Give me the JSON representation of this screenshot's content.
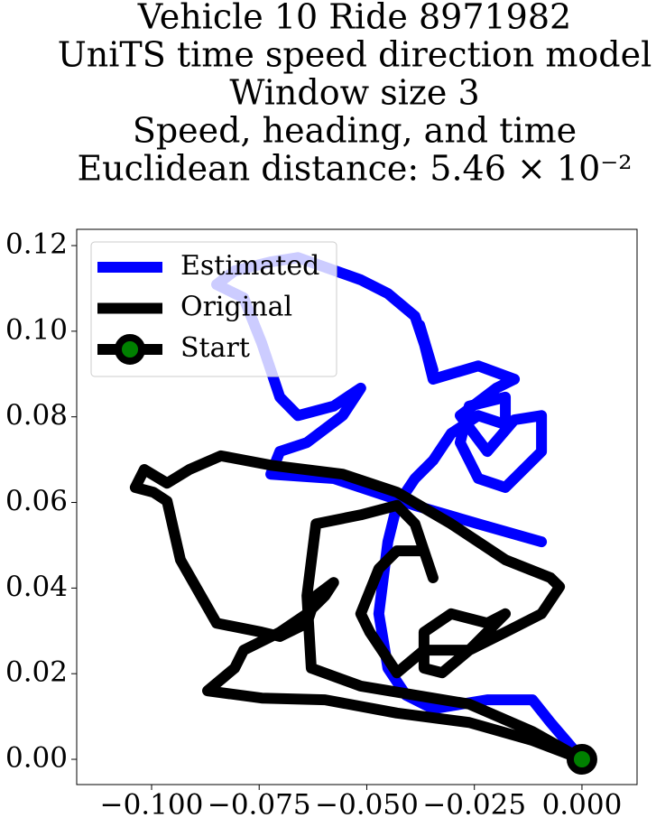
{
  "chart_data": {
    "type": "line",
    "title": [
      "Vehicle 10 Ride 8971982",
      "UniTS time speed direction model",
      "Window size 3",
      "Speed, heading, and time",
      "Euclidean distance: 5.46 × 10⁻²"
    ],
    "xlim": [
      -0.1174,
      0.0128
    ],
    "ylim": [
      -0.0059,
      0.1238
    ],
    "xticks": [
      {
        "value": -0.1,
        "label": "−0.100"
      },
      {
        "value": -0.075,
        "label": "−0.075"
      },
      {
        "value": -0.05,
        "label": "−0.050"
      },
      {
        "value": -0.025,
        "label": "−0.025"
      },
      {
        "value": 0,
        "label": "0.000"
      }
    ],
    "yticks": [
      {
        "value": 0,
        "label": "0.00"
      },
      {
        "value": 0.02,
        "label": "0.02"
      },
      {
        "value": 0.04,
        "label": "0.04"
      },
      {
        "value": 0.06,
        "label": "0.06"
      },
      {
        "value": 0.08,
        "label": "0.08"
      },
      {
        "value": 0.1,
        "label": "0.10"
      },
      {
        "value": 0.12,
        "label": "0.12"
      }
    ],
    "grid": false,
    "legend": "upper left",
    "series": [
      {
        "name": "Estimated",
        "color": "#0000ff",
        "x": [
          0,
          -0.0073,
          -0.0115,
          -0.022,
          -0.0346,
          -0.0409,
          -0.0451,
          -0.0472,
          -0.0451,
          -0.043,
          -0.0388,
          -0.0346,
          -0.0304,
          -0.0241,
          -0.0178,
          -0.0178,
          -0.0262,
          -0.0283,
          -0.0241,
          -0.0178,
          -0.0094,
          -0.0094,
          -0.0157,
          -0.022,
          -0.0283,
          -0.0199,
          -0.0157,
          -0.0241,
          -0.0346,
          -0.0377,
          -0.0346,
          -0.0388,
          -0.0451,
          -0.0514,
          -0.066,
          -0.0723,
          -0.0807,
          -0.0849,
          -0.0786,
          -0.0744,
          -0.0702,
          -0.066,
          -0.0577,
          -0.0514,
          -0.0556,
          -0.0639,
          -0.0702,
          -0.0723,
          -0.0577,
          -0.0388,
          -0.0241,
          -0.0094
        ],
        "y": [
          0,
          0.0086,
          0.0139,
          0.0139,
          0.0118,
          0.015,
          0.0213,
          0.034,
          0.0508,
          0.0593,
          0.0656,
          0.0698,
          0.0761,
          0.0803,
          0.0782,
          0.0846,
          0.0825,
          0.074,
          0.0656,
          0.0635,
          0.0719,
          0.0803,
          0.0793,
          0.0719,
          0.0803,
          0.0867,
          0.0888,
          0.0919,
          0.0888,
          0.1014,
          0.0909,
          0.1035,
          0.1088,
          0.112,
          0.1172,
          0.1162,
          0.1141,
          0.1109,
          0.1078,
          0.0972,
          0.0846,
          0.0803,
          0.0825,
          0.0867,
          0.0803,
          0.074,
          0.0719,
          0.0666,
          0.0656,
          0.0593,
          0.055,
          0.0508
        ]
      },
      {
        "name": "Original",
        "color": "#000000",
        "x": [
          0,
          -0.0115,
          -0.0262,
          -0.043,
          -0.0597,
          -0.0744,
          -0.087,
          -0.0807,
          -0.0786,
          -0.0702,
          -0.0639,
          -0.0597,
          -0.0577,
          -0.0618,
          -0.0639,
          -0.0702,
          -0.0744,
          -0.0849,
          -0.0933,
          -0.0964,
          -0.0996,
          -0.1038,
          -0.1017,
          -0.0964,
          -0.0912,
          -0.0839,
          -0.0723,
          -0.0556,
          -0.043,
          -0.0304,
          -0.0178,
          -0.0073,
          -0.0052,
          -0.0094,
          -0.0178,
          -0.0262,
          -0.0325,
          -0.0367,
          -0.0367,
          -0.0304,
          -0.022,
          -0.0178,
          -0.0262,
          -0.0367,
          -0.043,
          -0.0451,
          -0.0493,
          -0.0514,
          -0.0472,
          -0.043,
          -0.0367,
          -0.0346,
          -0.0388,
          -0.043,
          -0.0514,
          -0.0618,
          -0.0639,
          -0.0629,
          -0.0514,
          -0.0388,
          -0.0262,
          -0.0115,
          0
        ],
        "y": [
          0,
          0.0044,
          0.0086,
          0.0108,
          0.0139,
          0.0143,
          0.016,
          0.0213,
          0.0255,
          0.0297,
          0.034,
          0.0382,
          0.0413,
          0.0382,
          0.0318,
          0.0287,
          0.0297,
          0.0318,
          0.0466,
          0.0603,
          0.0624,
          0.0635,
          0.0677,
          0.0645,
          0.0677,
          0.0709,
          0.0687,
          0.0666,
          0.0624,
          0.055,
          0.0466,
          0.0424,
          0.0403,
          0.034,
          0.0297,
          0.0255,
          0.0202,
          0.0213,
          0.0297,
          0.034,
          0.0318,
          0.034,
          0.0255,
          0.0255,
          0.0202,
          0.0234,
          0.0297,
          0.034,
          0.0445,
          0.0487,
          0.0487,
          0.0424,
          0.055,
          0.0593,
          0.0571,
          0.055,
          0.0382,
          0.0213,
          0.0171,
          0.015,
          0.0129,
          0.0065,
          0
        ]
      },
      {
        "name": "Start",
        "color": "#000000",
        "marker_color": "#008000",
        "x": [
          0
        ],
        "y": [
          0
        ]
      }
    ]
  }
}
